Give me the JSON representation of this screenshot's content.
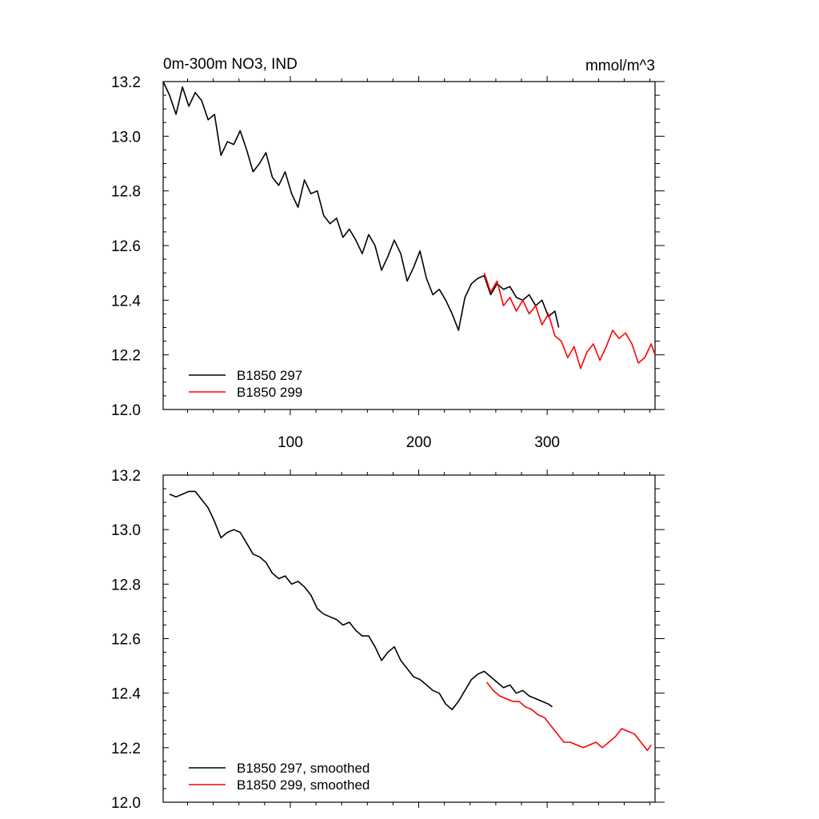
{
  "chart_data": [
    {
      "type": "line",
      "title": "0m-300m NO3, IND",
      "units": "mmol/m^3",
      "xlim": [
        1,
        384
      ],
      "ylim": [
        12.0,
        13.2
      ],
      "x_ticks": [
        100,
        200,
        300
      ],
      "x_tick_labels": [
        "100",
        "200",
        "300"
      ],
      "y_ticks": [
        12.0,
        12.2,
        12.4,
        12.6,
        12.8,
        13.0,
        13.2
      ],
      "y_tick_labels": [
        "12.0",
        "12.2",
        "12.4",
        "12.6",
        "12.8",
        "13.0",
        "13.2"
      ],
      "legend_position": "bottom-left",
      "series": [
        {
          "name": "B1850 297",
          "color": "#000000",
          "x": [
            1,
            6,
            11,
            16,
            21,
            26,
            31,
            36,
            41,
            46,
            51,
            56,
            61,
            66,
            71,
            76,
            81,
            86,
            91,
            96,
            101,
            106,
            111,
            116,
            121,
            126,
            131,
            136,
            141,
            146,
            151,
            156,
            161,
            166,
            171,
            176,
            181,
            186,
            191,
            196,
            201,
            206,
            211,
            216,
            221,
            226,
            231,
            236,
            241,
            246,
            251,
            256,
            261,
            266,
            271,
            276,
            281,
            286,
            291,
            296,
            301,
            306,
            309
          ],
          "values": [
            13.2,
            13.15,
            13.08,
            13.18,
            13.11,
            13.16,
            13.13,
            13.06,
            13.08,
            12.93,
            12.98,
            12.97,
            13.02,
            12.95,
            12.87,
            12.9,
            12.94,
            12.85,
            12.82,
            12.87,
            12.79,
            12.74,
            12.84,
            12.79,
            12.8,
            12.71,
            12.68,
            12.7,
            12.63,
            12.66,
            12.62,
            12.57,
            12.64,
            12.6,
            12.51,
            12.56,
            12.62,
            12.57,
            12.47,
            12.52,
            12.58,
            12.48,
            12.42,
            12.44,
            12.4,
            12.35,
            12.29,
            12.41,
            12.46,
            12.48,
            12.49,
            12.42,
            12.46,
            12.44,
            12.45,
            12.41,
            12.4,
            12.42,
            12.38,
            12.4,
            12.34,
            12.36,
            12.3
          ]
        },
        {
          "name": "B1850 299",
          "color": "#ff0000",
          "x": [
            251,
            256,
            261,
            266,
            271,
            276,
            281,
            286,
            291,
            296,
            301,
            306,
            311,
            316,
            321,
            326,
            331,
            336,
            341,
            346,
            351,
            356,
            361,
            366,
            371,
            376,
            381,
            384
          ],
          "values": [
            12.5,
            12.43,
            12.47,
            12.38,
            12.41,
            12.36,
            12.4,
            12.35,
            12.38,
            12.31,
            12.35,
            12.27,
            12.25,
            12.19,
            12.23,
            12.15,
            12.21,
            12.24,
            12.18,
            12.23,
            12.29,
            12.26,
            12.28,
            12.24,
            12.17,
            12.19,
            12.24,
            12.2
          ]
        }
      ]
    },
    {
      "type": "line",
      "xlim": [
        1,
        384
      ],
      "ylim": [
        12.0,
        13.2
      ],
      "y_ticks": [
        12.0,
        12.2,
        12.4,
        12.6,
        12.8,
        13.0,
        13.2
      ],
      "y_tick_labels": [
        "12.0",
        "12.2",
        "12.4",
        "12.6",
        "12.8",
        "13.0",
        "13.2"
      ],
      "legend_position": "bottom-left",
      "series": [
        {
          "name": "B1850 297, smoothed",
          "color": "#000000",
          "x": [
            6,
            11,
            16,
            21,
            26,
            31,
            36,
            41,
            46,
            51,
            56,
            61,
            66,
            71,
            76,
            81,
            86,
            91,
            96,
            101,
            106,
            111,
            116,
            121,
            126,
            131,
            136,
            141,
            146,
            151,
            156,
            161,
            166,
            171,
            176,
            181,
            186,
            191,
            196,
            201,
            206,
            211,
            216,
            221,
            226,
            231,
            236,
            241,
            246,
            251,
            256,
            261,
            266,
            271,
            276,
            281,
            286,
            291,
            296,
            301,
            304
          ],
          "values": [
            13.13,
            13.12,
            13.13,
            13.14,
            13.14,
            13.11,
            13.08,
            13.03,
            12.97,
            12.99,
            13.0,
            12.99,
            12.95,
            12.91,
            12.9,
            12.88,
            12.84,
            12.82,
            12.83,
            12.8,
            12.81,
            12.79,
            12.76,
            12.71,
            12.69,
            12.68,
            12.67,
            12.65,
            12.66,
            12.63,
            12.61,
            12.61,
            12.57,
            12.52,
            12.55,
            12.57,
            12.52,
            12.49,
            12.46,
            12.45,
            12.43,
            12.41,
            12.4,
            12.36,
            12.34,
            12.37,
            12.41,
            12.45,
            12.47,
            12.48,
            12.46,
            12.44,
            12.42,
            12.43,
            12.4,
            12.41,
            12.39,
            12.38,
            12.37,
            12.36,
            12.35
          ]
        },
        {
          "name": "B1850 299, smoothed",
          "color": "#ff0000",
          "x": [
            253,
            258,
            263,
            268,
            273,
            278,
            283,
            288,
            293,
            298,
            303,
            308,
            313,
            318,
            323,
            328,
            333,
            338,
            343,
            348,
            353,
            358,
            363,
            368,
            373,
            378,
            381
          ],
          "values": [
            12.44,
            12.41,
            12.39,
            12.38,
            12.37,
            12.37,
            12.35,
            12.34,
            12.32,
            12.31,
            12.28,
            12.25,
            12.22,
            12.22,
            12.21,
            12.2,
            12.21,
            12.22,
            12.2,
            12.22,
            12.24,
            12.27,
            12.26,
            12.25,
            12.22,
            12.19,
            12.21
          ]
        }
      ]
    }
  ]
}
